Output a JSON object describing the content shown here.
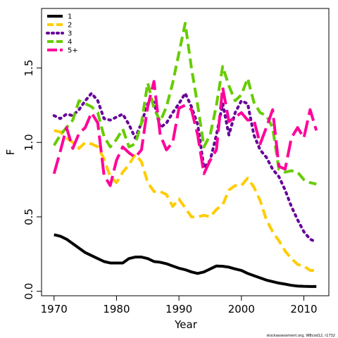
{
  "chart_data": {
    "type": "line",
    "xlabel": "Year",
    "ylabel": "F",
    "xlim": [
      1968,
      2014
    ],
    "ylim": [
      -0.03,
      1.9
    ],
    "x_ticks": [
      1970,
      1980,
      1990,
      2000,
      2010
    ],
    "y_ticks": [
      0.0,
      0.5,
      1.0,
      1.5
    ],
    "x_tick_labels": [
      "1970",
      "1980",
      "1990",
      "2000",
      "2010"
    ],
    "y_tick_labels": [
      "0.0",
      "0.5",
      "1.0",
      "1.5"
    ],
    "legend_position": "top-left",
    "credit": "stockassessment.org, WBcod12, r1732",
    "x": [
      1970,
      1971,
      1972,
      1973,
      1974,
      1975,
      1976,
      1977,
      1978,
      1979,
      1980,
      1981,
      1982,
      1983,
      1984,
      1985,
      1986,
      1987,
      1988,
      1989,
      1990,
      1991,
      1992,
      1993,
      1994,
      1995,
      1996,
      1997,
      1998,
      1999,
      2000,
      2001,
      2002,
      2003,
      2004,
      2005,
      2006,
      2007,
      2008,
      2009,
      2010,
      2011,
      2012
    ],
    "series": [
      {
        "name": "1",
        "color": "#000000",
        "dash": "solid",
        "values": [
          0.38,
          0.37,
          0.35,
          0.32,
          0.29,
          0.26,
          0.24,
          0.22,
          0.2,
          0.19,
          0.19,
          0.19,
          0.22,
          0.23,
          0.23,
          0.22,
          0.2,
          0.195,
          0.185,
          0.17,
          0.155,
          0.145,
          0.13,
          0.12,
          0.13,
          0.15,
          0.17,
          0.168,
          0.162,
          0.15,
          0.14,
          0.12,
          0.105,
          0.09,
          0.075,
          0.065,
          0.055,
          0.048,
          0.04,
          0.035,
          0.033,
          0.032,
          0.032
        ]
      },
      {
        "name": "2",
        "color": "#ffcc00",
        "dash": "dashed",
        "values": [
          1.08,
          1.07,
          1.03,
          1.0,
          0.96,
          1.0,
          0.99,
          0.97,
          0.89,
          0.77,
          0.73,
          0.8,
          0.85,
          0.92,
          0.87,
          0.73,
          0.67,
          0.67,
          0.65,
          0.57,
          0.62,
          0.56,
          0.5,
          0.5,
          0.51,
          0.5,
          0.55,
          0.58,
          0.68,
          0.71,
          0.71,
          0.76,
          0.7,
          0.61,
          0.48,
          0.4,
          0.34,
          0.27,
          0.22,
          0.18,
          0.17,
          0.14,
          0.14
        ]
      },
      {
        "name": "3",
        "color": "#660099",
        "dash": "dotted",
        "values": [
          1.18,
          1.16,
          1.19,
          1.18,
          1.22,
          1.28,
          1.33,
          1.28,
          1.16,
          1.15,
          1.17,
          1.19,
          1.12,
          1.03,
          1.13,
          1.26,
          1.27,
          1.1,
          1.13,
          1.2,
          1.26,
          1.33,
          1.24,
          1.12,
          0.83,
          0.88,
          1.05,
          1.26,
          1.05,
          1.2,
          1.28,
          1.26,
          1.05,
          0.95,
          0.9,
          0.82,
          0.77,
          0.68,
          0.57,
          0.48,
          0.4,
          0.35,
          0.33
        ]
      },
      {
        "name": "4",
        "color": "#66cc00",
        "dash": "dashed",
        "values": [
          0.98,
          1.05,
          1.1,
          1.15,
          1.28,
          1.26,
          1.24,
          1.2,
          1.04,
          0.97,
          1.02,
          1.09,
          0.97,
          0.99,
          1.13,
          1.4,
          1.23,
          1.14,
          1.24,
          1.4,
          1.6,
          1.8,
          1.5,
          1.25,
          0.97,
          1.05,
          1.25,
          1.51,
          1.38,
          1.28,
          1.32,
          1.43,
          1.27,
          1.2,
          1.18,
          1.1,
          0.82,
          0.8,
          0.81,
          0.8,
          0.75,
          0.73,
          0.72
        ]
      },
      {
        "name": "5+",
        "color": "#ff0099",
        "dash": "longdash",
        "values": [
          0.79,
          0.94,
          1.1,
          0.96,
          1.06,
          1.1,
          1.2,
          1.13,
          0.78,
          0.71,
          0.88,
          0.97,
          0.93,
          0.9,
          0.95,
          1.24,
          1.41,
          1.05,
          0.95,
          1.0,
          1.23,
          1.25,
          1.22,
          1.05,
          0.79,
          0.88,
          0.95,
          1.37,
          1.14,
          1.17,
          1.2,
          1.15,
          1.15,
          0.99,
          1.1,
          1.22,
          0.84,
          0.82,
          1.03,
          1.1,
          1.03,
          1.22,
          1.08
        ]
      }
    ]
  }
}
